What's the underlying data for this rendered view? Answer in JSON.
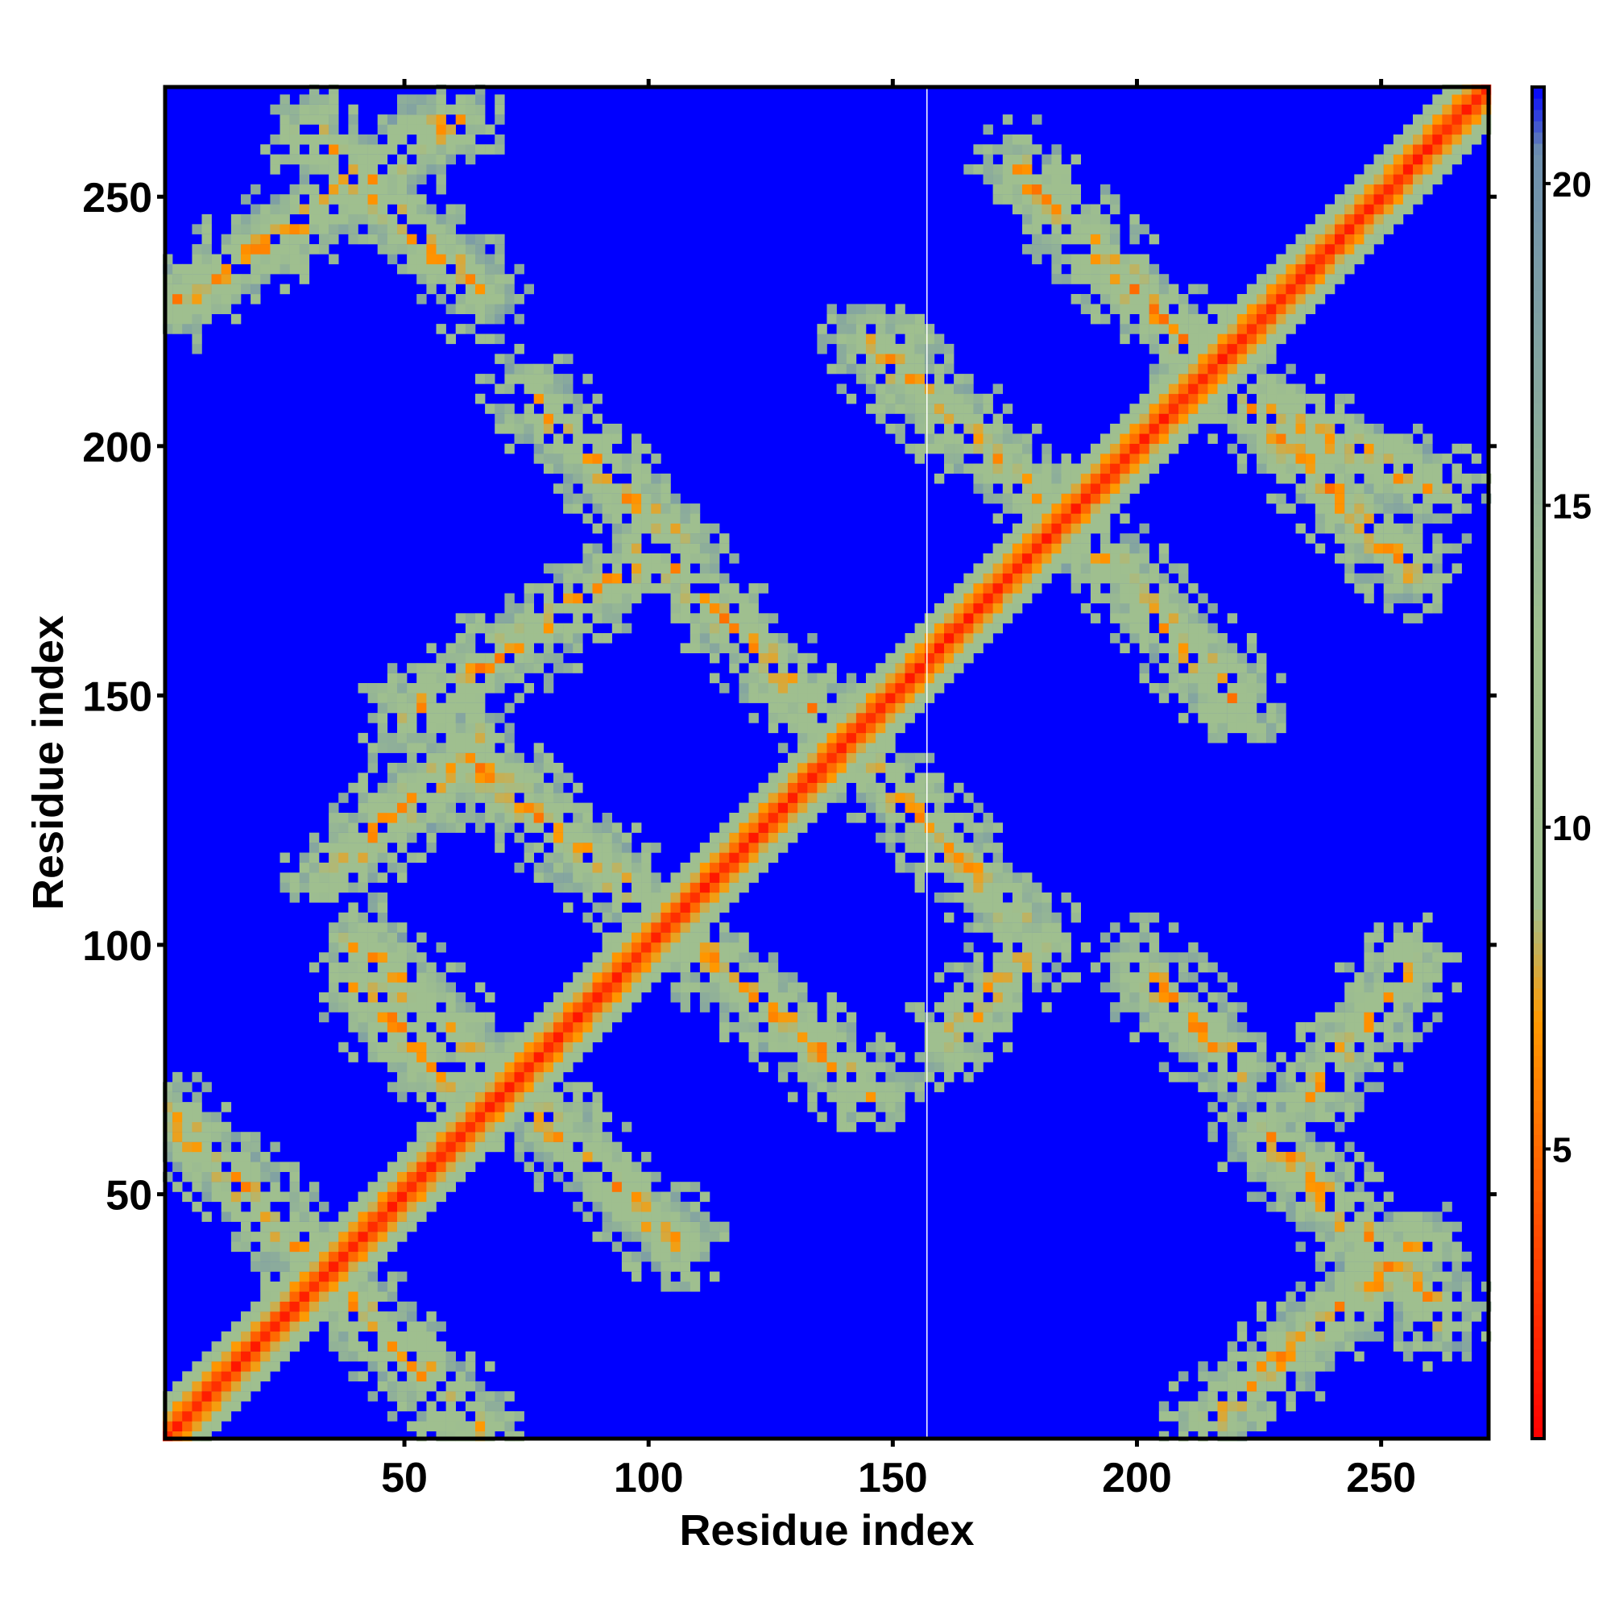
{
  "chart_data": {
    "type": "heatmap",
    "description_kind": "contact_map",
    "xlabel": "Residue index",
    "ylabel": "Residue index",
    "xlim": [
      1,
      272
    ],
    "ylim": [
      1,
      272
    ],
    "x_ticks": [
      50,
      100,
      150,
      200,
      250
    ],
    "y_ticks": [
      50,
      100,
      150,
      200,
      250
    ],
    "colorbar": {
      "ticks": [
        5,
        10,
        15,
        20
      ],
      "range": [
        0.5,
        21.5
      ],
      "colors": {
        "red": "#ff0000",
        "orange": "#ff9900",
        "green_gray": "#9fbf8f",
        "blue_gray": "#6e8fae",
        "blue": "#0000ff"
      }
    },
    "background_value": 21,
    "diagonal": {
      "value": 2
    },
    "secondary_bands": [
      {
        "x1": 2,
        "y1": 65,
        "x2": 65,
        "y2": 2
      },
      {
        "x1": 40,
        "y1": 100,
        "x2": 105,
        "y2": 40
      },
      {
        "x1": 65,
        "y1": 135,
        "x2": 145,
        "y2": 70
      },
      {
        "x1": 105,
        "y1": 175,
        "x2": 175,
        "y2": 105
      },
      {
        "x1": 145,
        "y1": 220,
        "x2": 195,
        "y2": 175
      },
      {
        "x1": 175,
        "y1": 255,
        "x2": 255,
        "y2": 175
      },
      {
        "x1": 220,
        "y1": 210,
        "x2": 262,
        "y2": 190
      },
      {
        "x1": 2,
        "y1": 228,
        "x2": 60,
        "y2": 265
      },
      {
        "x1": 30,
        "y1": 262,
        "x2": 65,
        "y2": 230
      },
      {
        "x1": 35,
        "y1": 115,
        "x2": 65,
        "y2": 140
      },
      {
        "x1": 50,
        "y1": 145,
        "x2": 100,
        "y2": 178
      },
      {
        "x1": 75,
        "y1": 210,
        "x2": 105,
        "y2": 180
      },
      {
        "x1": 160,
        "y1": 80,
        "x2": 180,
        "y2": 100
      },
      {
        "x1": 200,
        "y1": 170,
        "x2": 220,
        "y2": 148
      },
      {
        "x1": 215,
        "y1": 5,
        "x2": 258,
        "y2": 40
      },
      {
        "x1": 225,
        "y1": 62,
        "x2": 262,
        "y2": 25
      },
      {
        "x1": 40,
        "y1": 92,
        "x2": 60,
        "y2": 70
      },
      {
        "x1": 200,
        "y1": 95,
        "x2": 220,
        "y2": 75
      },
      {
        "x1": 235,
        "y1": 70,
        "x2": 255,
        "y2": 95
      }
    ]
  }
}
